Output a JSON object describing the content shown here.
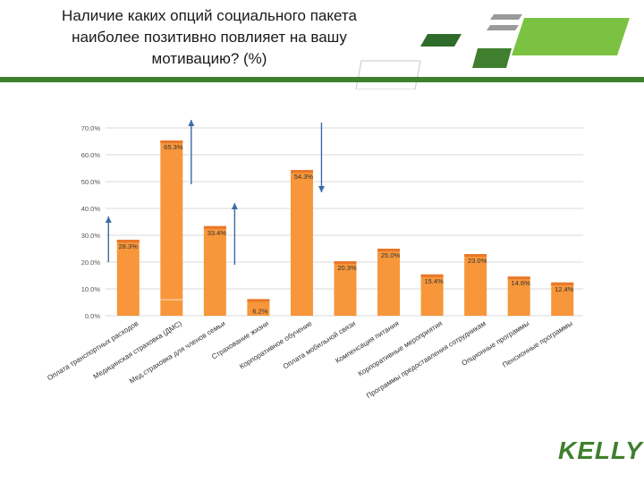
{
  "slide": {
    "title": "Наличие каких опций социального пакета наиболее позитивно повлияет на вашу мотивацию? (%)",
    "brand": "KELLY"
  },
  "colors": {
    "bar": "#f7963a",
    "bar_dark": "#e8782a",
    "grid": "#d9d9d9",
    "arrow": "#3b6aa6",
    "brand_green": "#3f7f2e",
    "light_green": "#7cc242"
  },
  "chart_data": {
    "type": "bar",
    "categories": [
      "Оплата транспортных расходов",
      "Медицинская страховка (ДМС)",
      "Мед.страховка для членов семьи",
      "Страхование жизни",
      "Корпоративное обучение",
      "Оплата мобильной связи",
      "Компенсация питания",
      "Корпоративные мероприятия",
      "Программы предоставления сотрудникам",
      "Опционные программы",
      "Пенсионные программы"
    ],
    "values": [
      28.3,
      65.3,
      33.4,
      6.2,
      54.3,
      20.3,
      25.0,
      15.4,
      23.0,
      14.6,
      12.4
    ],
    "value_labels": [
      "28.3%",
      "65.3%",
      "33.4%",
      "6.2%",
      "54.3%",
      "20.3%",
      "25.0%",
      "15.4%",
      "23.0%",
      "14.6%",
      "12.4%"
    ],
    "yticks": [
      0,
      10,
      20,
      30,
      40,
      50,
      60,
      70
    ],
    "ytick_labels": [
      "0.0%",
      "10.0%",
      "20.0%",
      "30.0%",
      "40.0%",
      "50.0%",
      "60.0%",
      "70.0%"
    ],
    "ylim": [
      0,
      70
    ],
    "grid": true,
    "annotations": [
      {
        "type": "arrow-up",
        "category_index": 0,
        "from": 20,
        "to": 37
      },
      {
        "type": "arrow-up",
        "category_index": 1,
        "from": 49,
        "to": 73
      },
      {
        "type": "arrow-up",
        "category_index": 2,
        "from": 19,
        "to": 42
      },
      {
        "type": "arrow-down",
        "category_index": 4,
        "from": 72,
        "to": 46
      }
    ]
  }
}
